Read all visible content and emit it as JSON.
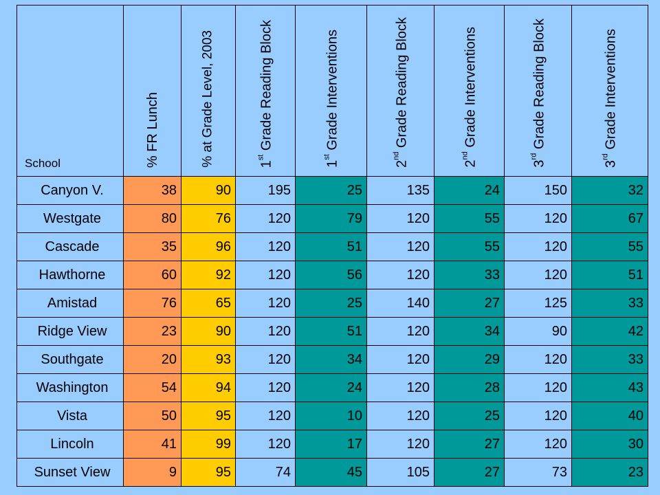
{
  "colors": {
    "background": "#99ccff",
    "fr_lunch": "#ff9955",
    "grade_level": "#ffcc00",
    "reading_block": "#99ccff",
    "interventions": "#009999"
  },
  "headers": {
    "school": "School",
    "fr_lunch": "% FR Lunch",
    "grade_level": "% at Grade Level, 2003",
    "g1_block": {
      "num": "1",
      "sup": "st",
      "rest": " Grade Reading Block"
    },
    "g1_interv": {
      "num": "1",
      "sup": "st",
      "rest": " Grade Interventions"
    },
    "g2_block": {
      "num": "2",
      "sup": "nd",
      "rest": " Grade Reading Block"
    },
    "g2_interv": {
      "num": "2",
      "sup": "nd",
      "rest": " Grade Interventions"
    },
    "g3_block": {
      "num": "3",
      "sup": "rd",
      "rest": "  Grade Reading Block"
    },
    "g3_interv": {
      "num": "3",
      "sup": "rd",
      "rest": "  Grade Interventions"
    }
  },
  "rows": [
    {
      "school": "Canyon V.",
      "fr": "38",
      "grade": "90",
      "b1": "195",
      "i1": "25",
      "b2": "135",
      "i2": "24",
      "b3": "150",
      "i3": "32"
    },
    {
      "school": "Westgate",
      "fr": "80",
      "grade": "76",
      "b1": "120",
      "i1": "79",
      "b2": "120",
      "i2": "55",
      "b3": "120",
      "i3": "67"
    },
    {
      "school": "Cascade",
      "fr": "35",
      "grade": "96",
      "b1": "120",
      "i1": "51",
      "b2": "120",
      "i2": "55",
      "b3": "120",
      "i3": "55"
    },
    {
      "school": "Hawthorne",
      "fr": "60",
      "grade": "92",
      "b1": "120",
      "i1": "56",
      "b2": "120",
      "i2": "33",
      "b3": "120",
      "i3": "51"
    },
    {
      "school": "Amistad",
      "fr": "76",
      "grade": "65",
      "b1": "120",
      "i1": "25",
      "b2": "140",
      "i2": "27",
      "b3": "125",
      "i3": "33"
    },
    {
      "school": "Ridge View",
      "fr": "23",
      "grade": "90",
      "b1": "120",
      "i1": "51",
      "b2": "120",
      "i2": "34",
      "b3": "90",
      "i3": "42"
    },
    {
      "school": "Southgate",
      "fr": "20",
      "grade": "93",
      "b1": "120",
      "i1": "34",
      "b2": "120",
      "i2": "29",
      "b3": "120",
      "i3": "33"
    },
    {
      "school": "Washington",
      "fr": "54",
      "grade": "94",
      "b1": "120",
      "i1": "24",
      "b2": "120",
      "i2": "28",
      "b3": "120",
      "i3": "43"
    },
    {
      "school": "Vista",
      "fr": "50",
      "grade": "95",
      "b1": "120",
      "i1": "10",
      "b2": "120",
      "i2": "25",
      "b3": "120",
      "i3": "40"
    },
    {
      "school": "Lincoln",
      "fr": "41",
      "grade": "99",
      "b1": "120",
      "i1": "17",
      "b2": "120",
      "i2": "27",
      "b3": "120",
      "i3": "30"
    },
    {
      "school": "Sunset View",
      "fr": "9",
      "grade": "95",
      "b1": "74",
      "i1": "45",
      "b2": "105",
      "i2": "27",
      "b3": "73",
      "i3": "23"
    }
  ]
}
